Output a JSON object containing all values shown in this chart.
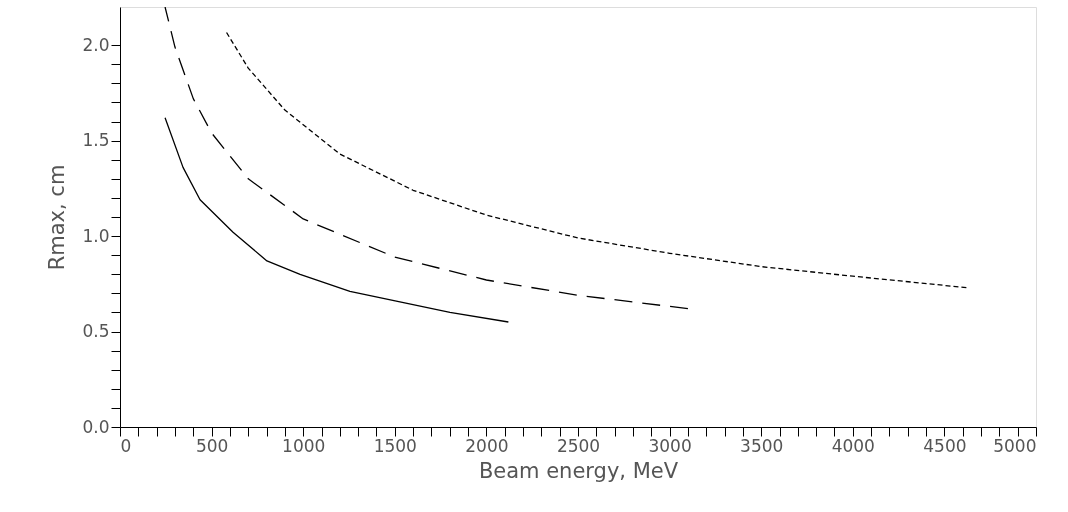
{
  "chart_data": {
    "type": "line",
    "xlabel": "Beam energy, MeV",
    "ylabel": "Rmax, cm",
    "xlim": [
      0,
      5000
    ],
    "ylim": [
      0,
      2.2
    ],
    "xticks": [
      0,
      {
        "value": 100,
        "label": null
      },
      {
        "value": 200,
        "label": null
      },
      {
        "value": 300,
        "label": null
      },
      {
        "value": 400,
        "label": null
      },
      500,
      {
        "value": 600,
        "label": null
      },
      {
        "value": 700,
        "label": null
      },
      {
        "value": 800,
        "label": null
      },
      {
        "value": 900,
        "label": null
      },
      1000,
      {
        "value": 1100,
        "label": null
      },
      {
        "value": 1200,
        "label": null
      },
      {
        "value": 1300,
        "label": null
      },
      {
        "value": 1400,
        "label": null
      },
      1500,
      {
        "value": 1600,
        "label": null
      },
      {
        "value": 1700,
        "label": null
      },
      {
        "value": 1800,
        "label": null
      },
      {
        "value": 1900,
        "label": null
      },
      2000,
      {
        "value": 2100,
        "label": null
      },
      {
        "value": 2200,
        "label": null
      },
      {
        "value": 2300,
        "label": null
      },
      {
        "value": 2400,
        "label": null
      },
      2500,
      {
        "value": 2600,
        "label": null
      },
      {
        "value": 2700,
        "label": null
      },
      {
        "value": 2800,
        "label": null
      },
      {
        "value": 2900,
        "label": null
      },
      3000,
      {
        "value": 3100,
        "label": null
      },
      {
        "value": 3200,
        "label": null
      },
      {
        "value": 3300,
        "label": null
      },
      {
        "value": 3400,
        "label": null
      },
      3500,
      {
        "value": 3600,
        "label": null
      },
      {
        "value": 3700,
        "label": null
      },
      {
        "value": 3800,
        "label": null
      },
      {
        "value": 3900,
        "label": null
      },
      4000,
      {
        "value": 4100,
        "label": null
      },
      {
        "value": 4200,
        "label": null
      },
      {
        "value": 4300,
        "label": null
      },
      {
        "value": 4400,
        "label": null
      },
      4500,
      {
        "value": 4600,
        "label": null
      },
      {
        "value": 4700,
        "label": null
      },
      {
        "value": 4800,
        "label": null
      },
      {
        "value": 4900,
        "label": null
      },
      5000
    ],
    "yticks": [
      {
        "value": 0,
        "label": "0.0"
      },
      {
        "value": 0.1,
        "label": null
      },
      {
        "value": 0.2,
        "label": null
      },
      {
        "value": 0.3,
        "label": null
      },
      {
        "value": 0.4,
        "label": null
      },
      0.5,
      {
        "value": 0.6,
        "label": null
      },
      {
        "value": 0.7,
        "label": null
      },
      {
        "value": 0.8,
        "label": null
      },
      {
        "value": 0.9,
        "label": null
      },
      {
        "value": 1,
        "label": "1.0"
      },
      {
        "value": 1.1,
        "label": null
      },
      {
        "value": 1.2,
        "label": null
      },
      {
        "value": 1.3,
        "label": null
      },
      {
        "value": 1.4,
        "label": null
      },
      1.5,
      {
        "value": 1.6,
        "label": null
      },
      {
        "value": 1.7,
        "label": null
      },
      {
        "value": 1.8,
        "label": null
      },
      {
        "value": 1.9,
        "label": null
      },
      {
        "value": 2,
        "label": "2.0"
      }
    ],
    "grid": false,
    "marker": "none",
    "series": [
      {
        "color": "#000000",
        "line_style": "solid",
        "x": [
          246,
          344,
          437,
          617,
          802,
          983,
          1255,
          1528,
          1801,
          2120
        ],
        "values": [
          1.62,
          1.36,
          1.19,
          1.02,
          0.87,
          0.8,
          0.71,
          0.655,
          0.6,
          0.55
        ]
      },
      {
        "color": "#000000",
        "line_style": "dashed",
        "x": [
          246,
          300,
          400,
          500,
          700,
          1000,
          1500,
          2000,
          2500,
          3100
        ],
        "values": [
          2.2,
          1.99,
          1.72,
          1.54,
          1.3,
          1.09,
          0.89,
          0.77,
          0.69,
          0.62
        ]
      },
      {
        "color": "#000000",
        "line_style": "dotted",
        "x": [
          573,
          700,
          900,
          1200,
          1600,
          2000,
          2500,
          3000,
          3500,
          4000,
          4620
        ],
        "values": [
          2.08,
          1.88,
          1.66,
          1.43,
          1.24,
          1.11,
          0.99,
          0.91,
          0.84,
          0.79,
          0.73
        ]
      }
    ]
  }
}
